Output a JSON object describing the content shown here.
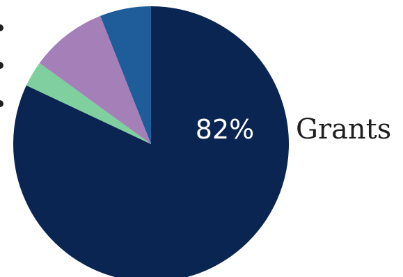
{
  "chart_data": {
    "type": "pie",
    "slices": [
      {
        "value": 82,
        "color": "#0b2553"
      },
      {
        "value": 3,
        "color": "#7fcf9f"
      },
      {
        "value": 9,
        "color": "#a57fb8"
      },
      {
        "value": 6,
        "color": "#1f5c9a"
      }
    ],
    "data_labels": [
      {
        "slice_index": 0,
        "text": "82%"
      }
    ],
    "category_labels": [
      {
        "slice_index": 0,
        "text": "Grants"
      }
    ],
    "start_angle_deg": 0,
    "direction": "clockwise",
    "legend": "none"
  }
}
